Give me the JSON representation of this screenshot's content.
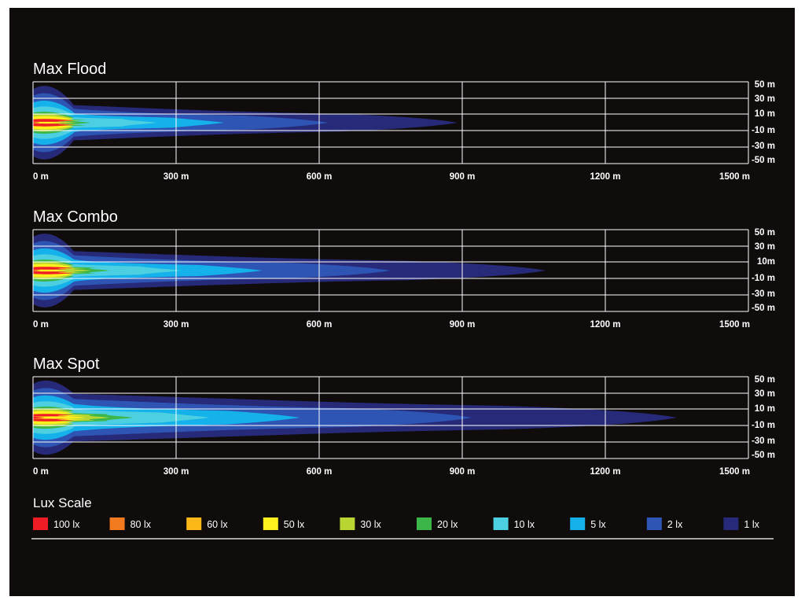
{
  "chart_data": {
    "type": "heatmap",
    "legend": {
      "title": "Lux Scale",
      "entries": [
        {
          "label": "100 lx",
          "lux": 100,
          "color": "#ee1c25"
        },
        {
          "label": "80 lx",
          "lux": 80,
          "color": "#f47a20"
        },
        {
          "label": "60 lx",
          "lux": 60,
          "color": "#fbb817"
        },
        {
          "label": "50 lx",
          "lux": 50,
          "color": "#fdf01d"
        },
        {
          "label": "30 lx",
          "lux": 30,
          "color": "#b8d531"
        },
        {
          "label": "20 lx",
          "lux": 20,
          "color": "#3cb649"
        },
        {
          "label": "10 lx",
          "lux": 10,
          "color": "#4ccfe0"
        },
        {
          "label": "5 lx",
          "lux": 5,
          "color": "#14b1ea"
        },
        {
          "label": "2 lx",
          "lux": 2,
          "color": "#2e55b4"
        },
        {
          "label": "1 lx",
          "lux": 1,
          "color": "#262a79"
        }
      ]
    },
    "panels": [
      {
        "title": "Max Flood",
        "xticks": [
          "0 m",
          "300 m",
          "600 m",
          "900 m",
          "1200 m",
          "1500 m"
        ],
        "xtick_values": [
          0,
          300,
          600,
          900,
          1200,
          1500
        ],
        "yticks": [
          "50 m",
          "30 m",
          "10 m",
          "-10 m",
          "-30 m",
          "-50 m"
        ],
        "xlim": [
          0,
          1500
        ],
        "ylim": [
          -50,
          50
        ],
        "iso_reach_m": [
          {
            "lux": 1,
            "reach": 890
          },
          {
            "lux": 2,
            "reach": 620
          },
          {
            "lux": 5,
            "reach": 400
          },
          {
            "lux": 10,
            "reach": 260
          },
          {
            "lux": 20,
            "reach": 120
          },
          {
            "lux": 30,
            "reach": 90
          },
          {
            "lux": 50,
            "reach": 60
          },
          {
            "lux": 100,
            "reach": 15
          }
        ]
      },
      {
        "title": "Max Combo",
        "xticks": [
          "0 m",
          "300 m",
          "600 m",
          "900 m",
          "1200 m",
          "1500 m"
        ],
        "xtick_values": [
          0,
          300,
          600,
          900,
          1200,
          1500
        ],
        "yticks": [
          "50 m",
          "30 m",
          "10m",
          "-10 m",
          "-30 m",
          "-50 m"
        ],
        "xlim": [
          0,
          1500
        ],
        "ylim": [
          -50,
          50
        ],
        "iso_reach_m": [
          {
            "lux": 1,
            "reach": 1075
          },
          {
            "lux": 2,
            "reach": 750
          },
          {
            "lux": 5,
            "reach": 480
          },
          {
            "lux": 10,
            "reach": 310
          },
          {
            "lux": 20,
            "reach": 160
          },
          {
            "lux": 30,
            "reach": 120
          },
          {
            "lux": 50,
            "reach": 70
          },
          {
            "lux": 100,
            "reach": 15
          }
        ]
      },
      {
        "title": "Max Spot",
        "xticks": [
          "0 m",
          "300 m",
          "600 m",
          "900 m",
          "1200 m",
          "1500 m"
        ],
        "xtick_values": [
          0,
          300,
          600,
          900,
          1200,
          1500
        ],
        "yticks": [
          "50 m",
          "30 m",
          "10 m",
          "-10 m",
          "-30 m",
          "-50 m"
        ],
        "xlim": [
          0,
          1500
        ],
        "ylim": [
          -50,
          50
        ],
        "iso_reach_m": [
          {
            "lux": 1,
            "reach": 1350
          },
          {
            "lux": 2,
            "reach": 920
          },
          {
            "lux": 5,
            "reach": 560
          },
          {
            "lux": 10,
            "reach": 370
          },
          {
            "lux": 20,
            "reach": 210
          },
          {
            "lux": 30,
            "reach": 160
          },
          {
            "lux": 50,
            "reach": 110
          },
          {
            "lux": 100,
            "reach": 25
          }
        ]
      }
    ]
  }
}
